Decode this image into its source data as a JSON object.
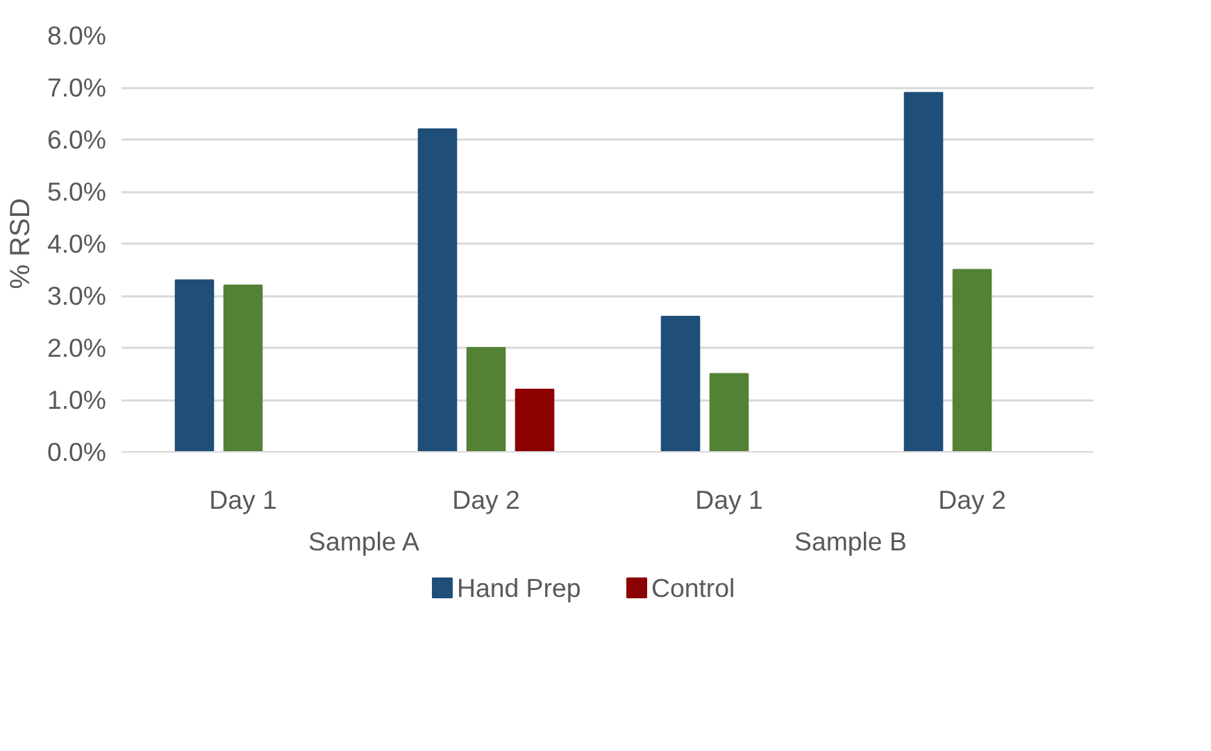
{
  "chart_data": {
    "type": "bar",
    "ylabel": "% RSD",
    "categories": [
      "Day 1",
      "Day 2",
      "Day 1",
      "Day 2"
    ],
    "annotations": [
      "Sample A",
      "Sample B"
    ],
    "series": [
      {
        "name": "Hand Prep",
        "color": "#1f4e79",
        "values": [
          3.3,
          6.2,
          2.6,
          6.9
        ]
      },
      {
        "color": "#548235",
        "values": [
          3.2,
          2.0,
          1.5,
          3.5
        ]
      },
      {
        "name": "Control",
        "color": "#8b0000",
        "values": [
          null,
          1.2,
          null,
          null
        ]
      }
    ],
    "ylim": [
      0,
      8
    ],
    "yticks": [
      {
        "value": 0,
        "label": "0.0%"
      },
      {
        "value": 1,
        "label": "1.0%"
      },
      {
        "value": 2,
        "label": "2.0%"
      },
      {
        "value": 3,
        "label": "3.0%"
      },
      {
        "value": 4,
        "label": "4.0%"
      },
      {
        "value": 5,
        "label": "5.0%"
      },
      {
        "value": 6,
        "label": "6.0%"
      },
      {
        "value": 7,
        "label": "7.0%"
      },
      {
        "value": 8,
        "label": "8.0%"
      }
    ],
    "grid": "y",
    "legend": "bottom"
  }
}
